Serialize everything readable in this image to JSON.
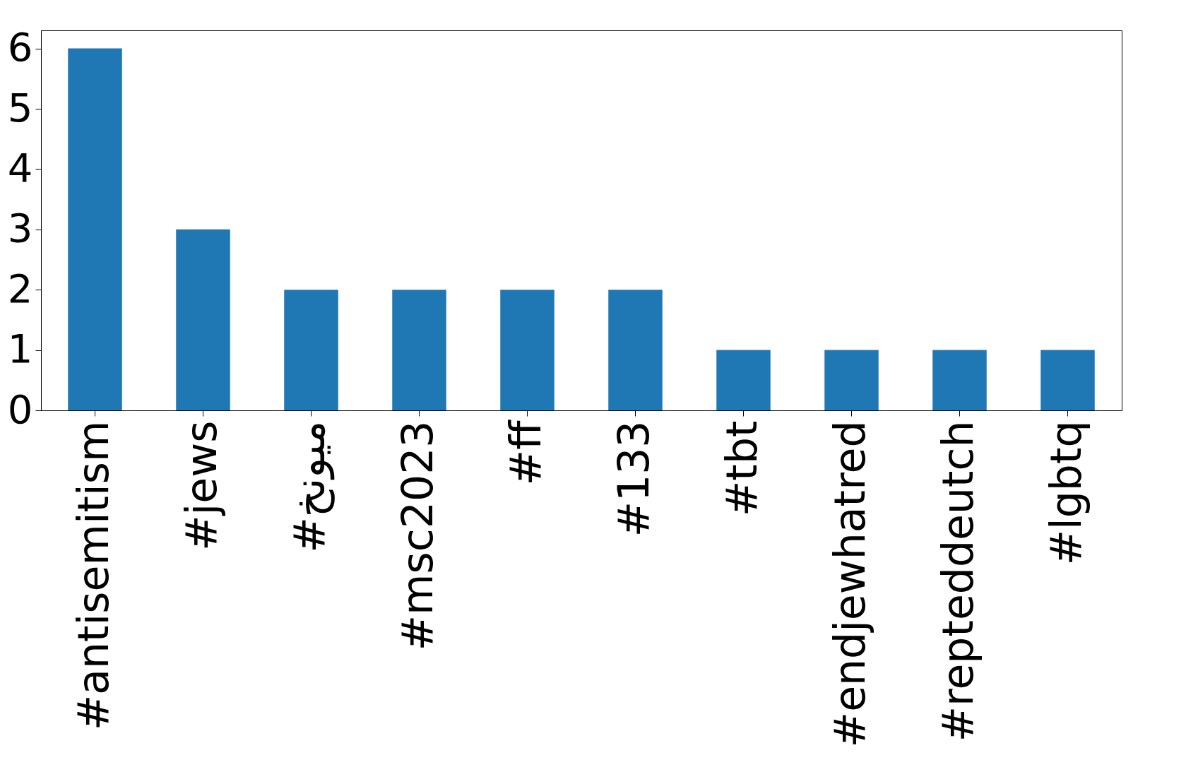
{
  "chart_data": {
    "type": "bar",
    "categories": [
      "#antisemitism",
      "#jews",
      "#ميونخ",
      "#msc2023",
      "#ff",
      "#133",
      "#tbt",
      "#endjewhatred",
      "#repteddeutch",
      "#lgbtq"
    ],
    "values": [
      6,
      3,
      2,
      2,
      2,
      2,
      1,
      1,
      1,
      1
    ],
    "color": "#1f77b4",
    "ylim": [
      0,
      6.3
    ],
    "yticks": [
      0,
      1,
      2,
      3,
      4,
      5,
      6
    ],
    "grid": false
  }
}
